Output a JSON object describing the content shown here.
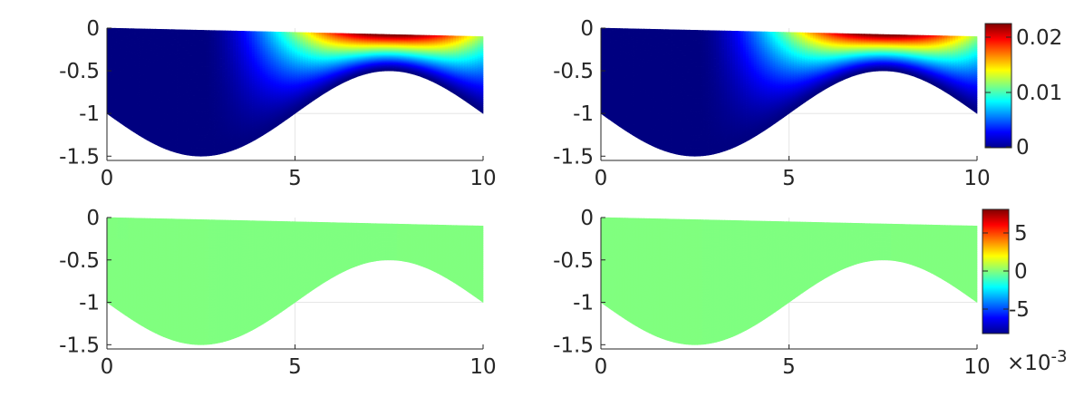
{
  "chart_data": [
    {
      "type": "heatmap",
      "panel": "top-left",
      "x_ticks": [
        "0",
        "5",
        "10"
      ],
      "y_ticks": [
        "0",
        "-0.5",
        "-1",
        "-1.5"
      ],
      "xlim": [
        0,
        10
      ],
      "ylim": [
        -1.55,
        0
      ],
      "field": "top",
      "colormap": "jet",
      "grid": true
    },
    {
      "type": "heatmap",
      "panel": "top-right",
      "x_ticks": [
        "0",
        "5",
        "10"
      ],
      "y_ticks": [
        "0",
        "-0.5",
        "-1",
        "-1.5"
      ],
      "xlim": [
        0,
        10
      ],
      "ylim": [
        -1.55,
        0
      ],
      "field": "top",
      "colormap": "jet",
      "grid": true
    },
    {
      "type": "heatmap",
      "panel": "bottom-left",
      "x_ticks": [
        "0",
        "5",
        "10"
      ],
      "y_ticks": [
        "0",
        "-0.5",
        "-1",
        "-1.5"
      ],
      "xlim": [
        0,
        10
      ],
      "ylim": [
        -1.55,
        0
      ],
      "field": "bottom",
      "colormap": "jet",
      "grid": true,
      "artifact_near_origin": true
    },
    {
      "type": "heatmap",
      "panel": "bottom-right",
      "x_ticks": [
        "0",
        "5",
        "10"
      ],
      "y_ticks": [
        "0",
        "-0.5",
        "-1",
        "-1.5"
      ],
      "xlim": [
        0,
        10
      ],
      "ylim": [
        -1.55,
        0
      ],
      "field": "bottom",
      "colormap": "jet",
      "grid": true
    }
  ],
  "domain": {
    "surface": {
      "y_at_x0": 0.0,
      "y_at_x10": -0.1
    },
    "bottom_boundary": {
      "mean": -1.0,
      "amplitude": 0.5,
      "period": 10,
      "shape": "-1 - 0.5*sin(2*pi*x/10)"
    }
  },
  "colorbars": {
    "top": {
      "ticks": [
        "0",
        "0.01",
        "0.02"
      ],
      "tick_values": [
        0,
        0.01,
        0.02
      ],
      "range": [
        0,
        0.0225
      ],
      "colormap": "jet"
    },
    "bottom": {
      "ticks": [
        "5",
        "0",
        "-5"
      ],
      "tick_values": [
        5,
        0,
        -5
      ],
      "range": [
        -8,
        8
      ],
      "colormap": "jet",
      "exponent_label": "×10",
      "exponent_power": "-3"
    }
  }
}
